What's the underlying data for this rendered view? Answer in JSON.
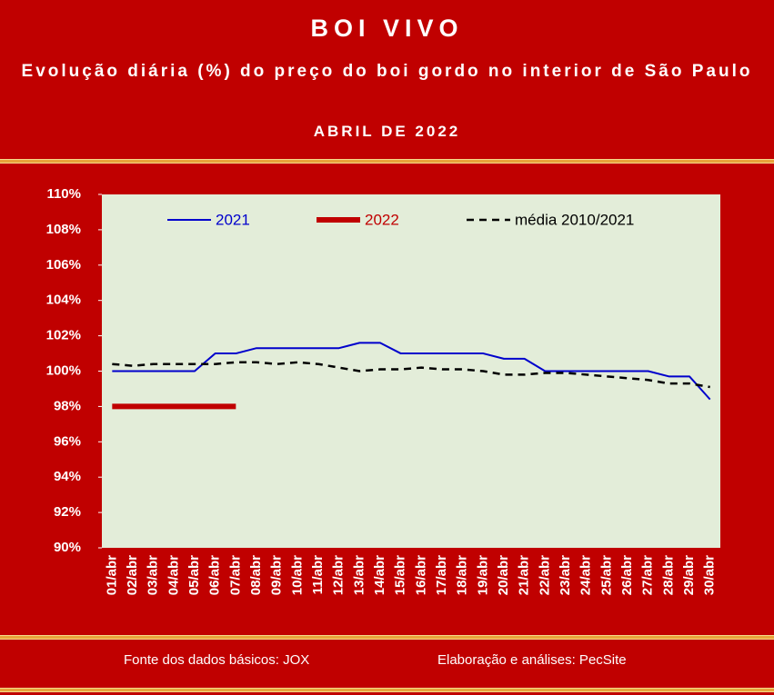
{
  "chart_data": {
    "type": "line",
    "title": "BOI VIVO",
    "subtitle": "Evolução diária (%) do preço do boi gordo no interior de São Paulo",
    "period": "ABRIL DE 2022",
    "categories": [
      "01/abr",
      "02/abr",
      "03/abr",
      "04/abr",
      "05/abr",
      "06/abr",
      "07/abr",
      "08/abr",
      "09/abr",
      "10/abr",
      "11/abr",
      "12/abr",
      "13/abr",
      "14/abr",
      "15/abr",
      "16/abr",
      "17/abr",
      "18/abr",
      "19/abr",
      "20/abr",
      "21/abr",
      "22/abr",
      "23/abr",
      "24/abr",
      "25/abr",
      "26/abr",
      "27/abr",
      "28/abr",
      "29/abr",
      "30/abr"
    ],
    "series": [
      {
        "name": "2021",
        "color": "#0000cc",
        "line_width": 2,
        "style": "solid",
        "values": [
          100,
          100,
          100,
          100,
          100,
          101,
          101,
          101.3,
          101.3,
          101.3,
          101.3,
          101.3,
          101.6,
          101.6,
          101,
          101,
          101,
          101,
          101,
          100.7,
          100.7,
          100,
          100,
          100,
          100,
          100,
          100,
          99.7,
          99.7,
          98.4
        ]
      },
      {
        "name": "2022",
        "color": "#c00000",
        "line_width": 6,
        "style": "solid",
        "values": [
          98,
          98,
          98,
          98,
          98,
          98,
          98,
          null,
          null,
          null,
          null,
          null,
          null,
          null,
          null,
          null,
          null,
          null,
          null,
          null,
          null,
          null,
          null,
          null,
          null,
          null,
          null,
          null,
          null,
          null
        ]
      },
      {
        "name": "média 2010/2021",
        "color": "#000000",
        "line_width": 2.5,
        "style": "dashed",
        "values": [
          100.4,
          100.3,
          100.4,
          100.4,
          100.4,
          100.4,
          100.5,
          100.5,
          100.4,
          100.5,
          100.4,
          100.2,
          100,
          100.1,
          100.1,
          100.2,
          100.1,
          100.1,
          100,
          99.8,
          99.8,
          99.9,
          99.9,
          99.8,
          99.7,
          99.6,
          99.5,
          99.3,
          99.3,
          99.1
        ]
      }
    ],
    "ylim": [
      90,
      110
    ],
    "yticks": [
      {
        "value": 90,
        "label": "90%"
      },
      {
        "value": 92,
        "label": "92%"
      },
      {
        "value": 94,
        "label": "94%"
      },
      {
        "value": 96,
        "label": "96%"
      },
      {
        "value": 98,
        "label": "98%"
      },
      {
        "value": 100,
        "label": "100%"
      },
      {
        "value": 102,
        "label": "102%"
      },
      {
        "value": 104,
        "label": "104%"
      },
      {
        "value": 106,
        "label": "106%"
      },
      {
        "value": 108,
        "label": "108%"
      },
      {
        "value": 110,
        "label": "110%"
      }
    ],
    "plot_background": "#e3edd9",
    "source": "Fonte dos dados básicos: JOX",
    "credit": "Elaboração e análises: PecSite"
  }
}
